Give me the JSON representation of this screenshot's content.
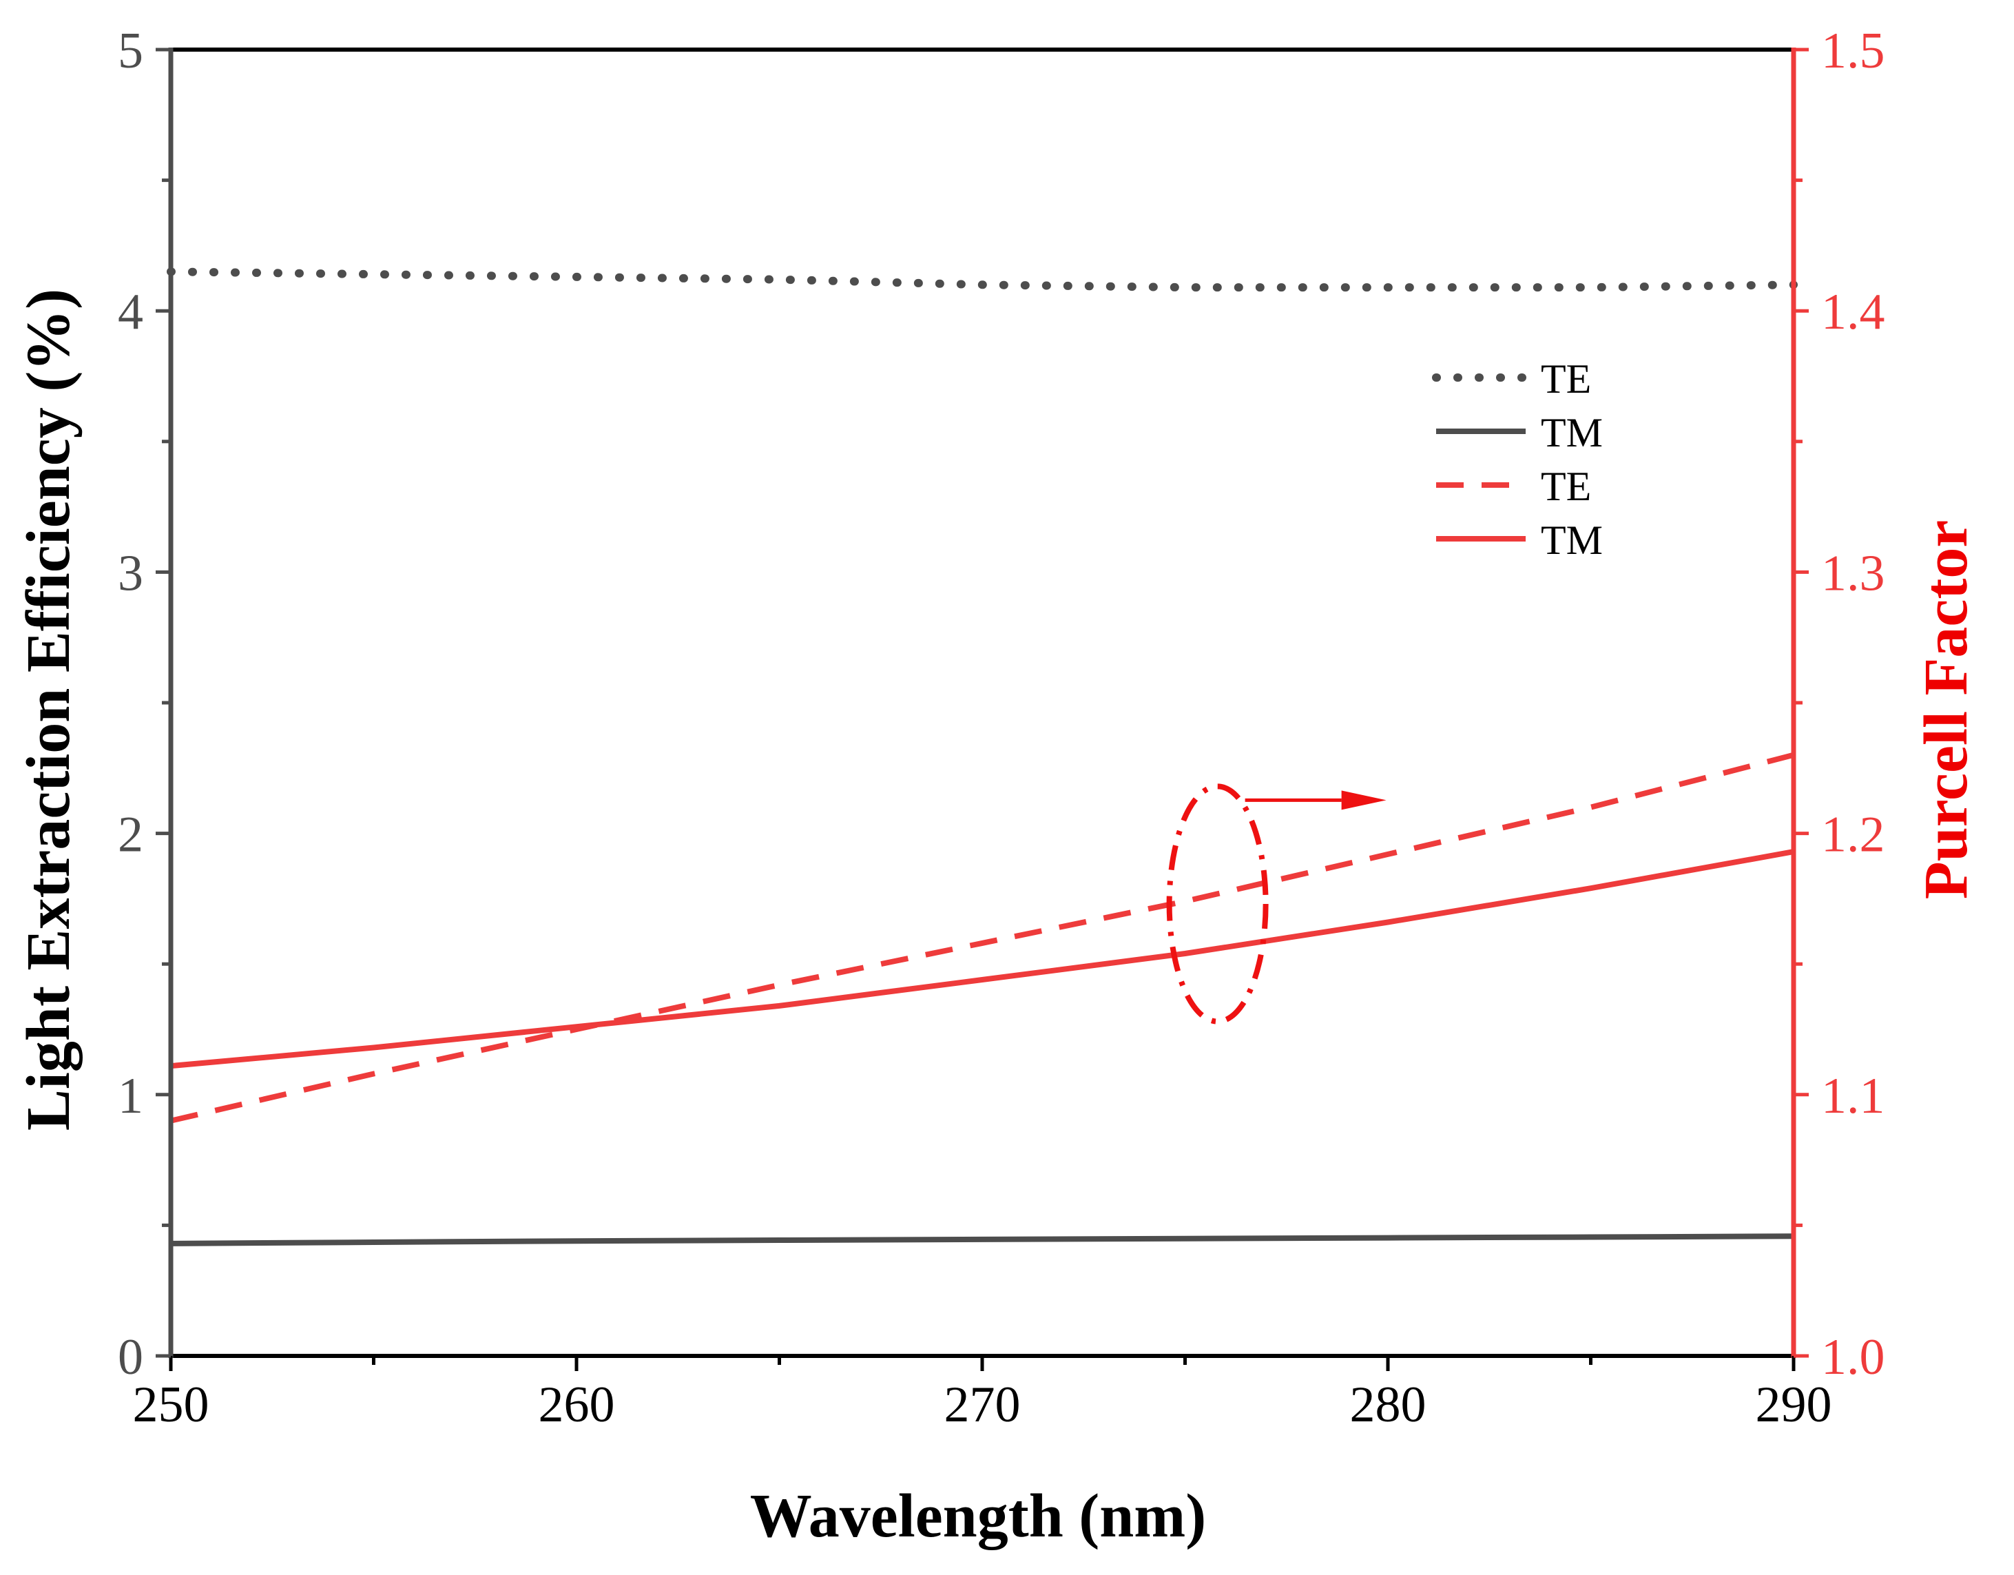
{
  "chart_data": {
    "type": "line",
    "title": "",
    "xlabel": "Wavelength (nm)",
    "ylabel": "Light Extraction Efficiency (%)",
    "y2label": "Purcell Factor",
    "xlim": [
      250,
      290
    ],
    "ylim": [
      0,
      5
    ],
    "y2lim": [
      1.0,
      1.5
    ],
    "xticks": [
      "250",
      "260",
      "270",
      "280",
      "290"
    ],
    "yticks": [
      "0",
      "1",
      "2",
      "3",
      "4",
      "5"
    ],
    "y2ticks": [
      "1.0",
      "1.1",
      "1.2",
      "1.3",
      "1.4",
      "1.5"
    ],
    "grid": false,
    "legend_position": "top-right",
    "colors": {
      "left_axis": "#4d4d4d",
      "right_axis": "#ee3b3b",
      "frame": "#000000"
    },
    "x": [
      250,
      255,
      260,
      265,
      270,
      275,
      280,
      285,
      290
    ],
    "series": [
      {
        "name": "TE",
        "axis": "left",
        "style": "dotted",
        "color": "#4d4d4d",
        "values": [
          4.15,
          4.14,
          4.13,
          4.12,
          4.1,
          4.09,
          4.09,
          4.09,
          4.1
        ]
      },
      {
        "name": "TM",
        "axis": "left",
        "style": "solid",
        "color": "#4d4d4d",
        "values": [
          0.43,
          0.435,
          0.44,
          0.443,
          0.446,
          0.449,
          0.452,
          0.455,
          0.458
        ]
      },
      {
        "name": "TE",
        "axis": "right",
        "style": "dashed",
        "color": "#ee3b3b",
        "values": [
          1.09,
          1.108,
          1.125,
          1.142,
          1.158,
          1.174,
          1.192,
          1.21,
          1.23
        ]
      },
      {
        "name": "TM",
        "axis": "right",
        "style": "solid",
        "color": "#ee3b3b",
        "values": [
          1.111,
          1.118,
          1.126,
          1.134,
          1.144,
          1.154,
          1.166,
          1.179,
          1.193
        ]
      }
    ],
    "annotations": [
      {
        "type": "ellipse-with-arrow",
        "color": "#ee1111",
        "points_to": "right axis",
        "x": 275.8,
        "y2_range": [
          1.128,
          1.218
        ]
      }
    ]
  }
}
